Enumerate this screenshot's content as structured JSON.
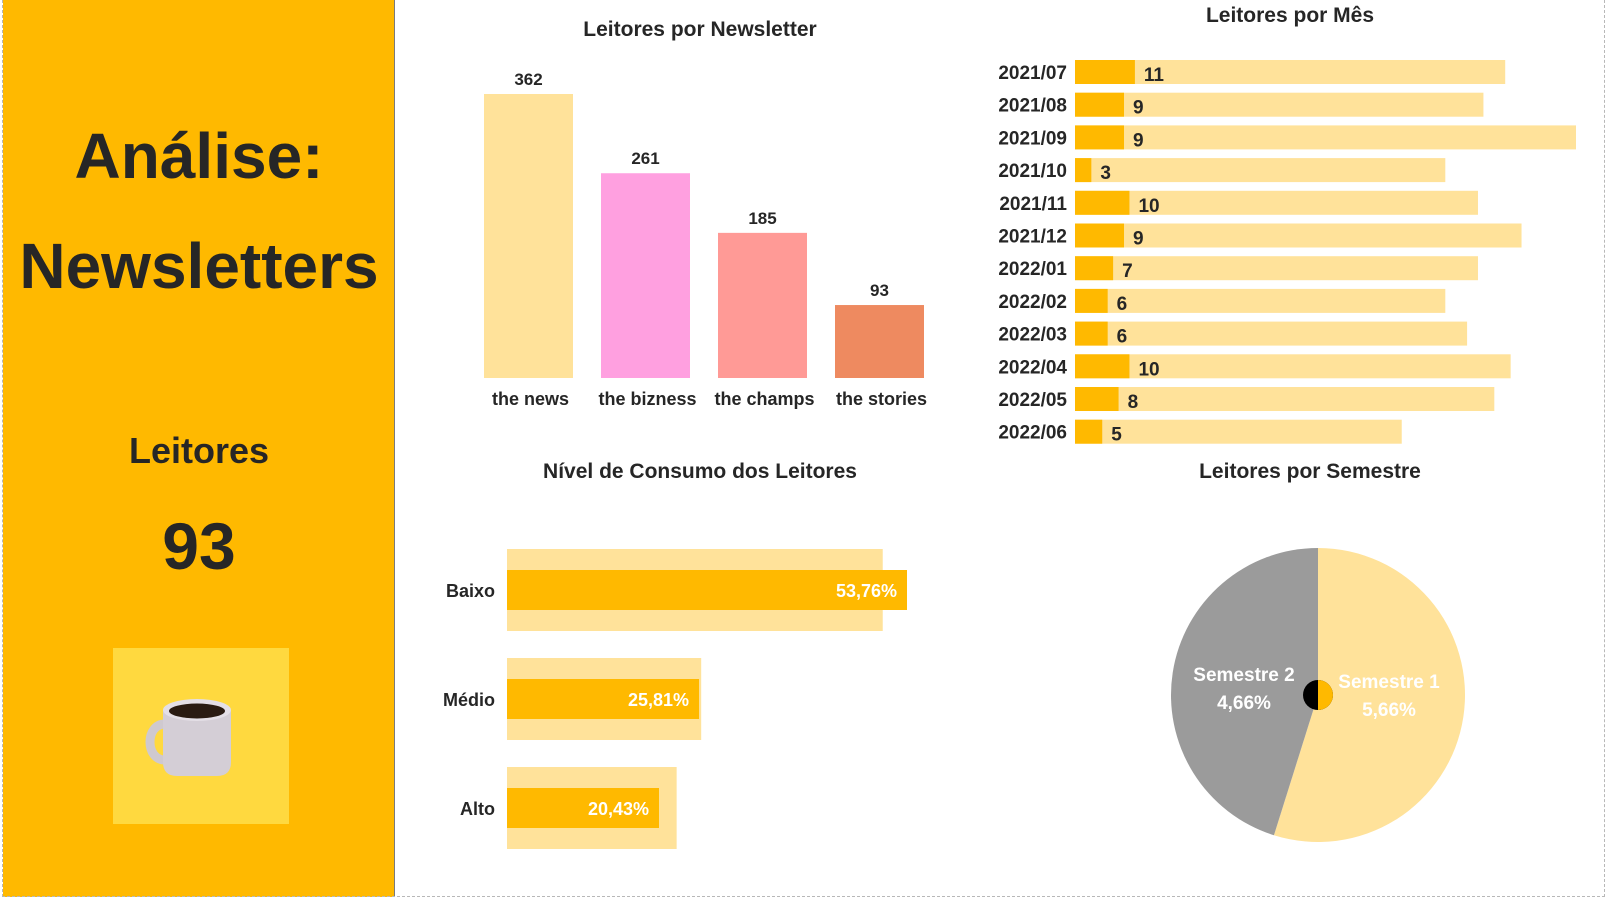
{
  "sidebar": {
    "title_line1": "Análise:",
    "title_line2": "Newsletters",
    "label": "Leitores",
    "value": "93",
    "icon": "coffee-mug-icon"
  },
  "colors": {
    "accent": "#FFB900",
    "light": "#FFE29A",
    "pink": "#FFA0E0",
    "salmon": "#FF9A96",
    "coral": "#EE8A60",
    "gray": "#9B9B9B",
    "icon_bg": "#FFD93F",
    "text": "#262626"
  },
  "chart_data": [
    {
      "id": "newsletter",
      "type": "bar",
      "title": "Leitores por Newsletter",
      "categories": [
        "the news",
        "the bizness",
        "the champs",
        "the stories"
      ],
      "values": [
        362,
        261,
        185,
        93
      ],
      "colors": [
        "#FFE29A",
        "#FFA0E0",
        "#FF9A96",
        "#EE8A60"
      ],
      "ylim": [
        0,
        362
      ]
    },
    {
      "id": "monthly",
      "type": "bar",
      "orientation": "horizontal",
      "title": "Leitores por Mês",
      "categories": [
        "2021/07",
        "2021/08",
        "2021/09",
        "2021/10",
        "2021/11",
        "2021/12",
        "2022/01",
        "2022/02",
        "2022/03",
        "2022/04",
        "2022/05",
        "2022/06"
      ],
      "series": [
        {
          "values": [
            11,
            9,
            9,
            3,
            10,
            9,
            7,
            6,
            6,
            10,
            8,
            5
          ]
        },
        {
          "values": [
            79,
            75,
            92,
            68,
            74,
            82,
            74,
            68,
            72,
            80,
            77,
            60
          ]
        }
      ],
      "xlim": [
        0,
        92
      ]
    },
    {
      "id": "consumption",
      "type": "bar",
      "orientation": "horizontal",
      "title": "Nível de Consumo dos Leitores",
      "categories": [
        "Baixo",
        "Médio",
        "Alto"
      ],
      "values": [
        53.76,
        25.81,
        20.43
      ],
      "labels": [
        "53,76%",
        "25,81%",
        "20,43%"
      ],
      "background_values": [
        50.5,
        26.1,
        22.8
      ],
      "xlim": [
        0,
        53.76
      ]
    },
    {
      "id": "semester",
      "type": "pie",
      "title": "Leitores por Semestre",
      "categories": [
        "Semestre 1",
        "Semestre 2"
      ],
      "values": [
        5.66,
        4.66
      ],
      "labels": [
        "5,66%",
        "4,66%"
      ],
      "colors": [
        "#FFE29A",
        "#9B9B9B"
      ]
    }
  ]
}
